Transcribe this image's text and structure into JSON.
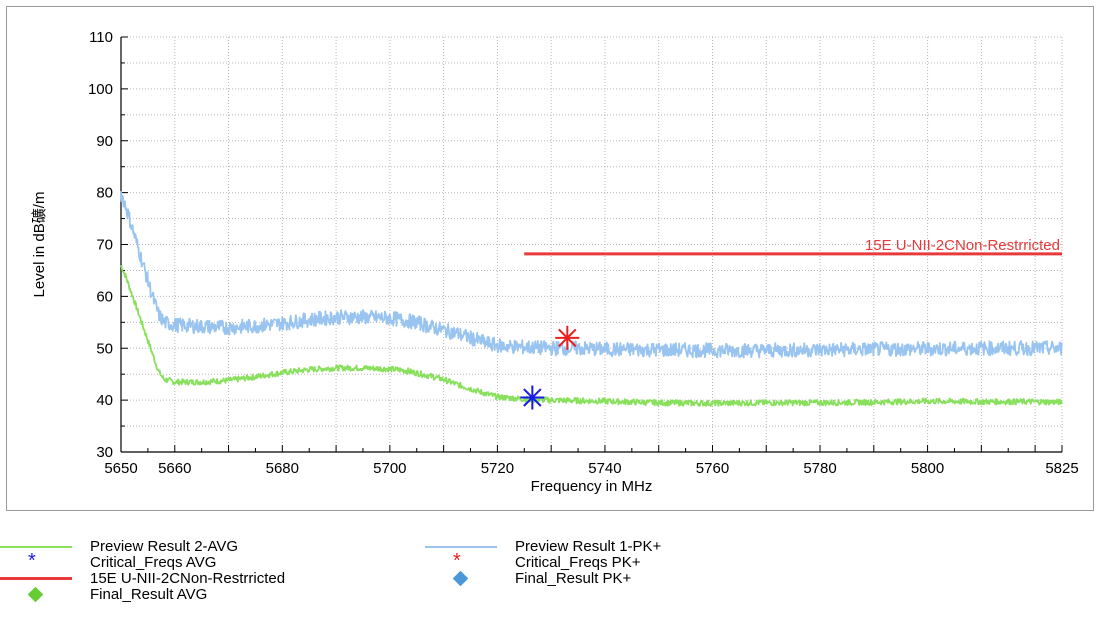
{
  "chart_data": {
    "type": "line",
    "xlabel": "Frequency in MHz",
    "ylabel": "Level in dB礦/m",
    "xlim": [
      5650,
      5825
    ],
    "ylim": [
      30,
      110
    ],
    "x_ticks": [
      "5650",
      "5660",
      "5680",
      "5700",
      "5720",
      "5740",
      "5760",
      "5780",
      "5800",
      "5825"
    ],
    "y_ticks": [
      "30",
      "40",
      "50",
      "60",
      "70",
      "80",
      "90",
      "100",
      "110"
    ],
    "grid": true,
    "legend_position": "bottom",
    "series": [
      {
        "name": "Preview Result 1-PK+",
        "color": "#99c4f0",
        "points": [
          [
            5650,
            80
          ],
          [
            5651,
            77
          ],
          [
            5652,
            73.5
          ],
          [
            5653,
            70
          ],
          [
            5654,
            66.5
          ],
          [
            5655,
            63
          ],
          [
            5656,
            59.5
          ],
          [
            5657,
            56.5
          ],
          [
            5658,
            55
          ],
          [
            5660,
            54.5
          ],
          [
            5665,
            54.2
          ],
          [
            5670,
            54
          ],
          [
            5675,
            54.3
          ],
          [
            5680,
            54.8
          ],
          [
            5685,
            55.5
          ],
          [
            5690,
            56
          ],
          [
            5695,
            56
          ],
          [
            5700,
            55.8
          ],
          [
            5705,
            55
          ],
          [
            5708,
            54
          ],
          [
            5710,
            53.5
          ],
          [
            5712,
            53
          ],
          [
            5715,
            52
          ],
          [
            5718,
            51
          ],
          [
            5720,
            50.5
          ],
          [
            5725,
            50.2
          ],
          [
            5730,
            50
          ],
          [
            5735,
            50
          ],
          [
            5740,
            49.8
          ],
          [
            5750,
            49.7
          ],
          [
            5760,
            49.6
          ],
          [
            5770,
            49.6
          ],
          [
            5780,
            49.7
          ],
          [
            5790,
            49.8
          ],
          [
            5800,
            49.9
          ],
          [
            5810,
            50
          ],
          [
            5820,
            50
          ],
          [
            5825,
            50
          ]
        ]
      },
      {
        "name": "Preview Result 2-AVG",
        "color": "#88e05c",
        "points": [
          [
            5650,
            66
          ],
          [
            5651,
            63.5
          ],
          [
            5652,
            60.5
          ],
          [
            5653,
            57.5
          ],
          [
            5654,
            54.5
          ],
          [
            5655,
            51.5
          ],
          [
            5656,
            48.5
          ],
          [
            5657,
            45.5
          ],
          [
            5658,
            44
          ],
          [
            5660,
            43.5
          ],
          [
            5665,
            43.5
          ],
          [
            5670,
            43.8
          ],
          [
            5675,
            44.5
          ],
          [
            5680,
            45.3
          ],
          [
            5685,
            45.9
          ],
          [
            5690,
            46.2
          ],
          [
            5695,
            46.2
          ],
          [
            5700,
            46
          ],
          [
            5703,
            45.7
          ],
          [
            5706,
            45
          ],
          [
            5708,
            44.5
          ],
          [
            5710,
            44
          ],
          [
            5712,
            43.2
          ],
          [
            5715,
            42.2
          ],
          [
            5718,
            41.2
          ],
          [
            5720,
            40.6
          ],
          [
            5725,
            40.2
          ],
          [
            5730,
            40
          ],
          [
            5740,
            39.8
          ],
          [
            5750,
            39.5
          ],
          [
            5760,
            39.4
          ],
          [
            5770,
            39.5
          ],
          [
            5780,
            39.5
          ],
          [
            5790,
            39.6
          ],
          [
            5800,
            39.8
          ],
          [
            5810,
            39.7
          ],
          [
            5820,
            39.7
          ],
          [
            5825,
            39.6
          ]
        ]
      }
    ],
    "limit_line": {
      "name": "15E U-NII-2CNon-Restrricted",
      "label": "15E U-NII-2CNon-Restrricted",
      "color": "#e83a3a",
      "x_start": 5725,
      "x_end": 5825,
      "y": 68.2
    },
    "critical_markers": [
      {
        "name": "Critical_Freqs AVG",
        "x": 5726.5,
        "y": 40.5,
        "color": "#1a1ae8"
      },
      {
        "name": "Critical_Freqs PK+",
        "x": 5733,
        "y": 52,
        "color": "#e82020"
      }
    ],
    "legend": [
      {
        "label": "Preview Result 2-AVG",
        "kind": "line",
        "color": "#88e05c"
      },
      {
        "label": "Preview Result 1-PK+",
        "kind": "line",
        "color": "#99c4f0"
      },
      {
        "label": "Critical_Freqs AVG",
        "kind": "star",
        "color": "#1a1ae8"
      },
      {
        "label": "Critical_Freqs PK+",
        "kind": "star",
        "color": "#e82020"
      },
      {
        "label": "15E U-NII-2CNon-Restrricted",
        "kind": "thick-line",
        "color": "#e83a3a"
      },
      {
        "label": "Final_Result PK+",
        "kind": "diamond",
        "color": "#4a98d8"
      },
      {
        "label": "Final_Result AVG",
        "kind": "diamond",
        "color": "#66cc33"
      }
    ]
  }
}
